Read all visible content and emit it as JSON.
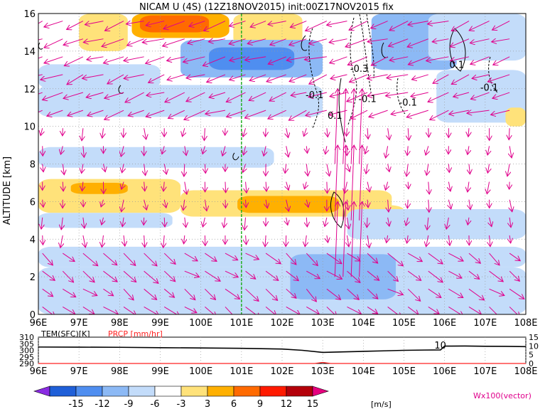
{
  "chart_data": [
    {
      "type": "heatmap",
      "title": "NICAM U (4S) (12Z18NOV2015) init:00Z17NOV2015 fix",
      "xlabel": "",
      "ylabel": "ALTITUDE [km]",
      "x_ticks": [
        "96E",
        "97E",
        "98E",
        "99E",
        "100E",
        "101E",
        "102E",
        "103E",
        "104E",
        "105E",
        "106E",
        "107E",
        "108E"
      ],
      "y_ticks": [
        "0",
        "2",
        "4",
        "6",
        "8",
        "10",
        "12",
        "14",
        "16"
      ],
      "xlim": [
        96,
        108
      ],
      "ylim": [
        0,
        16
      ],
      "grid": true,
      "marker_line_x": 101,
      "colorbar": {
        "levels": [
          "-15",
          "-12",
          "-9",
          "-6",
          "-3",
          "3",
          "6",
          "9",
          "12",
          "15"
        ],
        "colors": [
          "#8a2be2",
          "#1f5fd8",
          "#4f8ef0",
          "#8cb9f5",
          "#c3dcfa",
          "#ffffff",
          "#ffe27a",
          "#ffb000",
          "#ff6a00",
          "#ff1a00",
          "#b4000a",
          "#e6007e"
        ],
        "unit": "[m/s]"
      },
      "contour_labels": [
        {
          "text": "-0.1",
          "x": 102.8,
          "y": 11.5
        },
        {
          "text": "-0.1",
          "x": 104.1,
          "y": 11.3
        },
        {
          "text": "-0.1",
          "x": 105.1,
          "y": 11.1
        },
        {
          "text": "-0.3",
          "x": 103.9,
          "y": 12.9
        },
        {
          "text": "0.1",
          "x": 103.3,
          "y": 10.4
        },
        {
          "text": "0.1",
          "x": 106.3,
          "y": 13.1
        },
        {
          "text": "-0.1",
          "x": 107.1,
          "y": 11.9
        }
      ],
      "vector_label": "Wx100(vector)",
      "u_regions": [
        {
          "x0": 98.3,
          "x1": 100.7,
          "y0": 14.7,
          "y1": 16.0,
          "value": 7
        },
        {
          "x0": 98.5,
          "x1": 100.2,
          "y0": 15.0,
          "y1": 15.9,
          "value": 10
        },
        {
          "x0": 97.0,
          "x1": 98.2,
          "y0": 14.0,
          "y1": 16.0,
          "value": 4
        },
        {
          "x0": 100.8,
          "x1": 102.5,
          "y0": 14.3,
          "y1": 16.0,
          "value": 4
        },
        {
          "x0": 99.5,
          "x1": 103.0,
          "y0": 12.6,
          "y1": 14.6,
          "value": -8
        },
        {
          "x0": 100.2,
          "x1": 102.3,
          "y0": 13.0,
          "y1": 14.2,
          "value": -10
        },
        {
          "x0": 96.0,
          "x1": 99.0,
          "y0": 12.0,
          "y1": 13.3,
          "value": -5
        },
        {
          "x0": 96.0,
          "x1": 103.0,
          "y0": 10.5,
          "y1": 12.2,
          "value": -4
        },
        {
          "x0": 104.2,
          "x1": 106.3,
          "y0": 13.0,
          "y1": 16.0,
          "value": -7
        },
        {
          "x0": 105.6,
          "x1": 108.0,
          "y0": 13.5,
          "y1": 16.0,
          "value": -4
        },
        {
          "x0": 105.8,
          "x1": 108.0,
          "y0": 10.2,
          "y1": 13.0,
          "value": -4
        },
        {
          "x0": 96.0,
          "x1": 101.8,
          "y0": 7.8,
          "y1": 8.9,
          "value": -4
        },
        {
          "x0": 96.0,
          "x1": 99.5,
          "y0": 5.4,
          "y1": 7.2,
          "value": 4
        },
        {
          "x0": 96.8,
          "x1": 98.2,
          "y0": 6.4,
          "y1": 7.0,
          "value": 6
        },
        {
          "x0": 99.5,
          "x1": 104.7,
          "y0": 5.2,
          "y1": 6.6,
          "value": 4
        },
        {
          "x0": 100.9,
          "x1": 103.4,
          "y0": 5.4,
          "y1": 6.3,
          "value": 7
        },
        {
          "x0": 103.8,
          "x1": 105.0,
          "y0": 5.0,
          "y1": 5.8,
          "value": 4
        },
        {
          "x0": 107.5,
          "x1": 108.0,
          "y0": 10.0,
          "y1": 11.0,
          "value": 4
        },
        {
          "x0": 96.0,
          "x1": 99.3,
          "y0": 4.6,
          "y1": 5.4,
          "value": -4
        },
        {
          "x0": 103.6,
          "x1": 108.0,
          "y0": 4.0,
          "y1": 5.6,
          "value": -4
        },
        {
          "x0": 96.0,
          "x1": 108.0,
          "y0": 2.5,
          "y1": 3.6,
          "value": -4
        },
        {
          "x0": 96.0,
          "x1": 108.0,
          "y0": 0.0,
          "y1": 2.5,
          "value": -5
        },
        {
          "x0": 102.2,
          "x1": 104.8,
          "y0": 0.8,
          "y1": 3.2,
          "value": -8
        }
      ]
    },
    {
      "type": "line",
      "title": "",
      "xlabel": "",
      "ylabel": "",
      "x_ticks": [
        "96E",
        "97E",
        "98E",
        "99E",
        "100E",
        "101E",
        "102E",
        "103E",
        "104E",
        "105E",
        "106E",
        "107E",
        "108E"
      ],
      "xlim": [
        96,
        108
      ],
      "left_axis": {
        "name": "TEM(SFC)[K]",
        "ticks": [
          "290",
          "295",
          "300",
          "305",
          "310"
        ],
        "ylim": [
          290,
          310
        ]
      },
      "right_axis": {
        "name": "PRCP [mm/hr]",
        "ticks": [
          "0",
          "5",
          "10",
          "15"
        ],
        "ylim": [
          0,
          15
        ]
      },
      "inline_label": "10",
      "series": [
        {
          "name": "TEM(SFC)[K]",
          "x": [
            96,
            97,
            98,
            99,
            100,
            101,
            102,
            102.5,
            103,
            103.5,
            104,
            104.5,
            105,
            105.5,
            105.9,
            106,
            106.5,
            107,
            107.5,
            108
          ],
          "values": [
            302.5,
            302.4,
            302.3,
            302.0,
            301.8,
            301.5,
            301.0,
            300.0,
            298.4,
            298.8,
            299.2,
            299.6,
            300.0,
            300.2,
            300.3,
            303.2,
            303.3,
            303.1,
            303.0,
            302.8
          ]
        },
        {
          "name": "PRCP [mm/hr]",
          "x": [
            96,
            102.8,
            103,
            103.2,
            108
          ],
          "values": [
            0,
            0,
            0.6,
            0,
            0
          ]
        }
      ]
    }
  ]
}
